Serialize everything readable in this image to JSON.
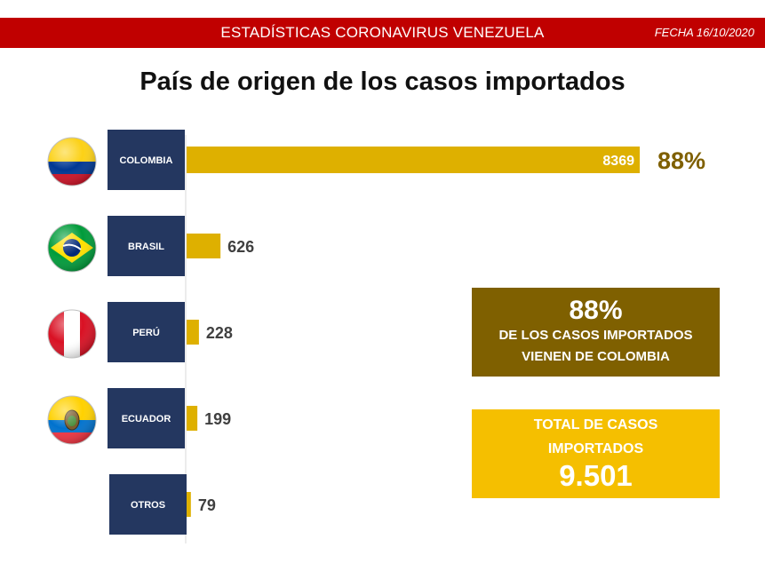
{
  "header": {
    "title": "ESTADÍSTICAS CORONAVIRUS VENEZUELA",
    "date": "FECHA 16/10/2020"
  },
  "chart_data": {
    "type": "bar",
    "orientation": "horizontal",
    "title": "País de origen de los casos importados",
    "categories": [
      "COLOMBIA",
      "BRASIL",
      "PERÚ",
      "ECUADOR",
      "OTROS"
    ],
    "values": [
      8369,
      626,
      228,
      199,
      79
    ],
    "value_labels": [
      "8369",
      "626",
      "228",
      "199",
      "79"
    ],
    "annotation": "88%",
    "bar_color": "#deb000",
    "category_box_color": "#243760",
    "annotation_color": "#7f6000",
    "flags": [
      "colombia-flag",
      "brazil-flag",
      "peru-flag",
      "ecuador-flag",
      null
    ]
  },
  "summary": {
    "percent": "88%",
    "line1": "DE LOS CASOS IMPORTADOS",
    "line2": "VIENEN DE COLOMBIA",
    "color": "#7f6000"
  },
  "total": {
    "label_line1": "TOTAL DE CASOS",
    "label_line2": "IMPORTADOS",
    "value": "9.501",
    "color": "#f5bf00"
  }
}
